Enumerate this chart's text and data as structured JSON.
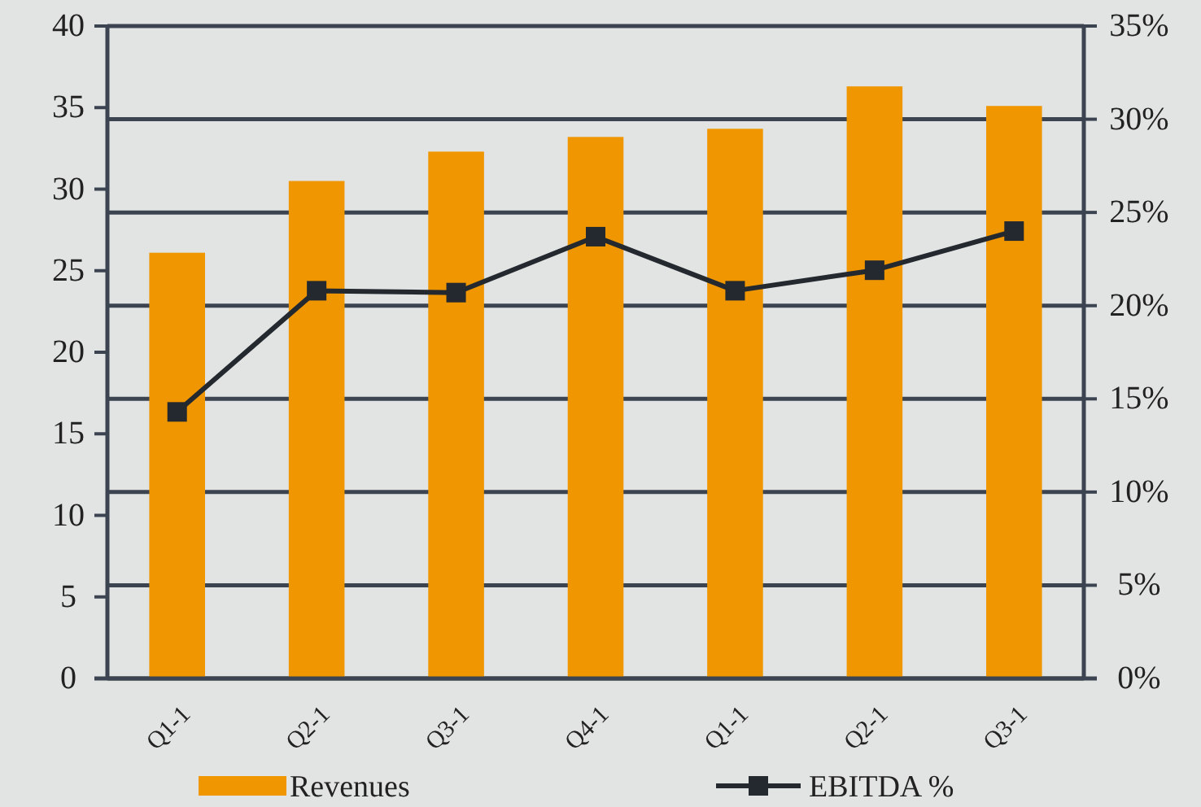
{
  "chart_data": {
    "type": "bar",
    "categories": [
      "Q1-1",
      "Q2-1",
      "Q3-1",
      "Q4-1",
      "Q1-1",
      "Q2-1",
      "Q3-1"
    ],
    "series": [
      {
        "name": "Revenues",
        "color": "#ef9600",
        "values": [
          26.1,
          30.5,
          32.3,
          33.2,
          33.7,
          36.3,
          35.1
        ]
      },
      {
        "name": "EBITDA %",
        "type": "line",
        "axis": "y2",
        "color": "#23292f",
        "marker": "square",
        "values": [
          14.3,
          20.8,
          20.7,
          23.7,
          20.8,
          21.9,
          24.0
        ]
      }
    ],
    "ylim": [
      0,
      40
    ],
    "yticks": [
      0,
      5,
      10,
      15,
      20,
      25,
      30,
      35,
      40
    ],
    "y2lim": [
      0,
      35
    ],
    "y2ticks": [
      {
        "value": 0,
        "label": "0%"
      },
      {
        "value": 5,
        "label": "5%"
      },
      {
        "value": 10,
        "label": "10%"
      },
      {
        "value": 15,
        "label": "15%"
      },
      {
        "value": 20,
        "label": "20%"
      },
      {
        "value": 25,
        "label": "25%"
      },
      {
        "value": 30,
        "label": "30%"
      },
      {
        "value": 35,
        "label": "35%"
      }
    ],
    "grid": true,
    "legend": "bottom"
  }
}
